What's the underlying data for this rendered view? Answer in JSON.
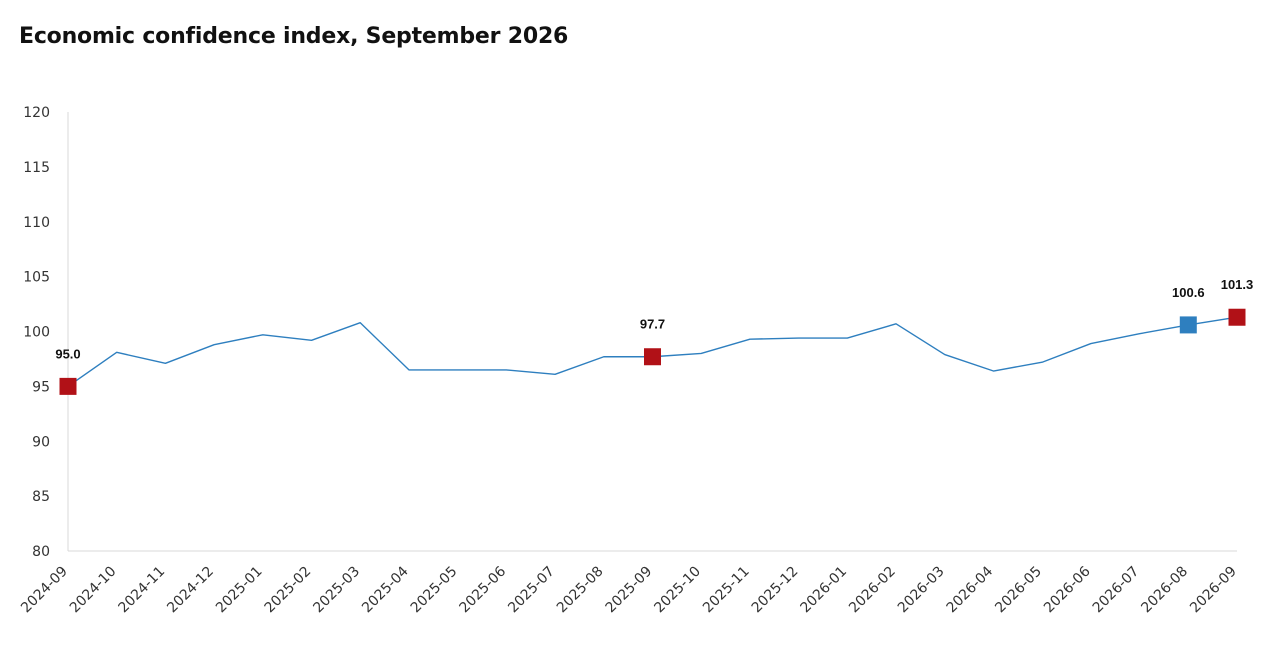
{
  "title": "Economic confidence index, September 2026",
  "chart_data": {
    "type": "line",
    "title": "Economic confidence index, September 2026",
    "xlabel": "",
    "ylabel": "",
    "ylim": [
      80,
      120
    ],
    "yticks": [
      80,
      85,
      90,
      95,
      100,
      105,
      110,
      115,
      120
    ],
    "grid": false,
    "legend": "none",
    "categories": [
      "2024-09",
      "2024-10",
      "2024-11",
      "2024-12",
      "2025-01",
      "2025-02",
      "2025-03",
      "2025-04",
      "2025-05",
      "2025-06",
      "2025-07",
      "2025-08",
      "2025-09",
      "2025-10",
      "2025-11",
      "2025-12",
      "2026-01",
      "2026-02",
      "2026-03",
      "2026-04",
      "2026-05",
      "2026-06",
      "2026-07",
      "2026-08",
      "2026-09"
    ],
    "series": [
      {
        "values": [
          95.0,
          98.1,
          97.1,
          98.8,
          99.7,
          99.2,
          100.8,
          96.5,
          96.5,
          96.5,
          96.1,
          97.7,
          97.7,
          98.0,
          99.3,
          99.4,
          99.4,
          100.7,
          97.9,
          96.4,
          97.2,
          98.9,
          99.8,
          100.6,
          101.3
        ],
        "color": "#2e7fbf"
      }
    ],
    "highlights": [
      {
        "category": "2024-09",
        "value": 95.0,
        "label": "95.0",
        "color": "#b11117"
      },
      {
        "category": "2025-09",
        "value": 97.7,
        "label": "97.7",
        "color": "#b11117"
      },
      {
        "category": "2026-08",
        "value": 100.6,
        "label": "100.6",
        "color": "#2e7fbf"
      },
      {
        "category": "2026-09",
        "value": 101.3,
        "label": "101.3",
        "color": "#b11117"
      }
    ],
    "axis_color": "#d9d9d9"
  }
}
